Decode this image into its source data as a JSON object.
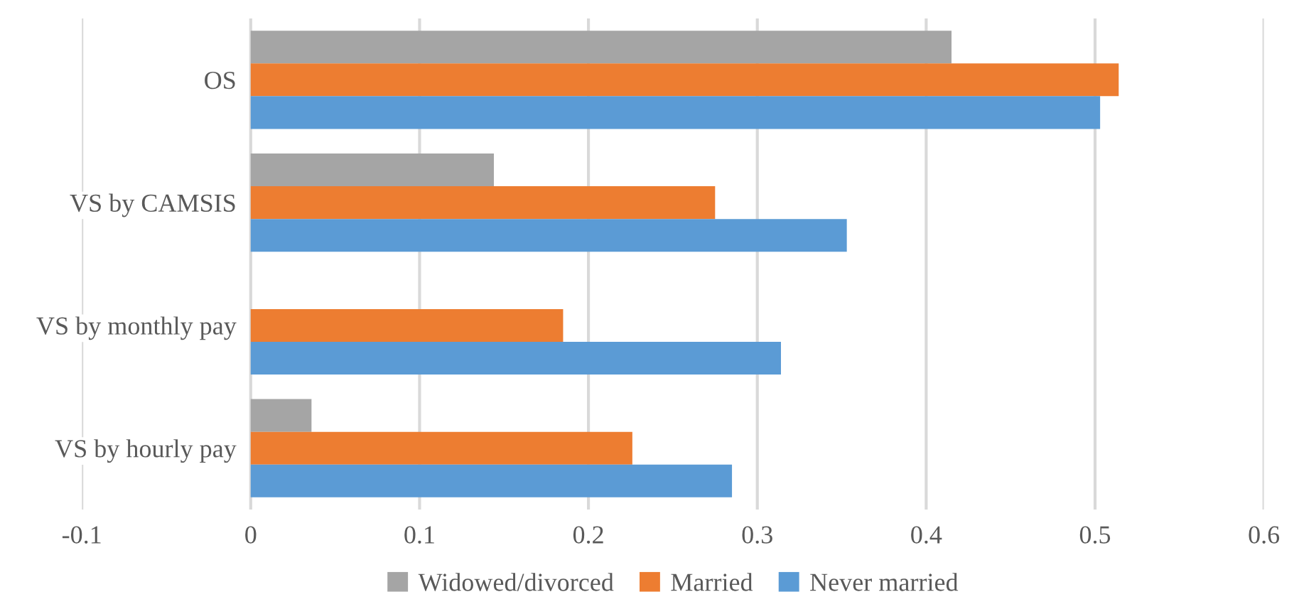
{
  "chart_data": {
    "type": "bar",
    "orientation": "horizontal",
    "categories": [
      "OS",
      "VS by CAMSIS",
      "VS by monthly pay",
      "VS by hourly pay"
    ],
    "series": [
      {
        "name": "Widowed/divorced",
        "color": "#a5a5a5",
        "values": [
          0.415,
          0.144,
          0,
          0.036
        ]
      },
      {
        "name": "Married",
        "color": "#ed7d31",
        "values": [
          0.514,
          0.275,
          0.185,
          0.226
        ]
      },
      {
        "name": "Never married",
        "color": "#5b9bd5",
        "values": [
          0.503,
          0.353,
          0.314,
          0.285
        ]
      }
    ],
    "xlim": [
      -0.1,
      0.6
    ],
    "xticks": [
      -0.1,
      0,
      0.1,
      0.2,
      0.3,
      0.4,
      0.5,
      0.6
    ],
    "grid": "x",
    "legend": "bottom"
  }
}
